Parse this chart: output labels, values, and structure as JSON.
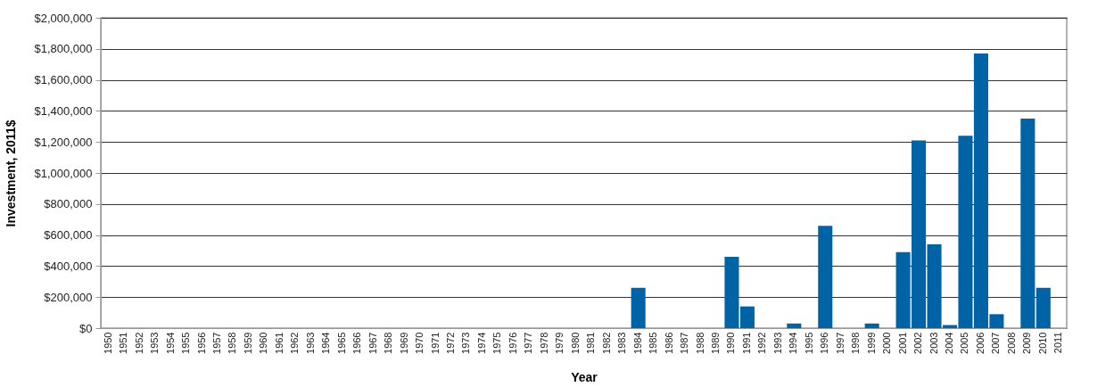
{
  "chart_data": {
    "type": "bar",
    "xlabel": "Year",
    "ylabel": "Investment, 2011$",
    "categories": [
      "1950",
      "1951",
      "1952",
      "1953",
      "1954",
      "1955",
      "1956",
      "1957",
      "1958",
      "1959",
      "1960",
      "1961",
      "1962",
      "1963",
      "1964",
      "1965",
      "1966",
      "1967",
      "1968",
      "1969",
      "1970",
      "1971",
      "1972",
      "1973",
      "1974",
      "1975",
      "1976",
      "1977",
      "1978",
      "1979",
      "1980",
      "1981",
      "1982",
      "1983",
      "1984",
      "1985",
      "1986",
      "1987",
      "1988",
      "1989",
      "1990",
      "1991",
      "1992",
      "1993",
      "1994",
      "1995",
      "1996",
      "1997",
      "1998",
      "1999",
      "2000",
      "2001",
      "2002",
      "2003",
      "2004",
      "2005",
      "2006",
      "2007",
      "2008",
      "2009",
      "2010",
      "2011"
    ],
    "values": [
      0,
      0,
      0,
      0,
      0,
      0,
      0,
      0,
      0,
      0,
      0,
      0,
      0,
      0,
      0,
      0,
      0,
      0,
      0,
      0,
      0,
      0,
      0,
      0,
      0,
      0,
      0,
      0,
      0,
      0,
      0,
      0,
      0,
      0,
      260000,
      0,
      0,
      0,
      0,
      0,
      460000,
      140000,
      0,
      0,
      30000,
      0,
      660000,
      0,
      0,
      30000,
      0,
      490000,
      1210000,
      540000,
      20000,
      1240000,
      1770000,
      90000,
      0,
      1350000,
      260000,
      0
    ],
    "color": "#0063a6",
    "ylim": [
      0,
      2000000
    ],
    "yticks": [
      {
        "value": 0,
        "label": "$0"
      },
      {
        "value": 200000,
        "label": "$200,000"
      },
      {
        "value": 400000,
        "label": "$400,000"
      },
      {
        "value": 600000,
        "label": "$600,000"
      },
      {
        "value": 800000,
        "label": "$800,000"
      },
      {
        "value": 1000000,
        "label": "$1,000,000"
      },
      {
        "value": 1200000,
        "label": "$1,200,000"
      },
      {
        "value": 1400000,
        "label": "$1,400,000"
      },
      {
        "value": 1600000,
        "label": "$1,600,000"
      },
      {
        "value": 1800000,
        "label": "$1,800,000"
      },
      {
        "value": 2000000,
        "label": "$2,000,000"
      }
    ],
    "grid": "y"
  }
}
